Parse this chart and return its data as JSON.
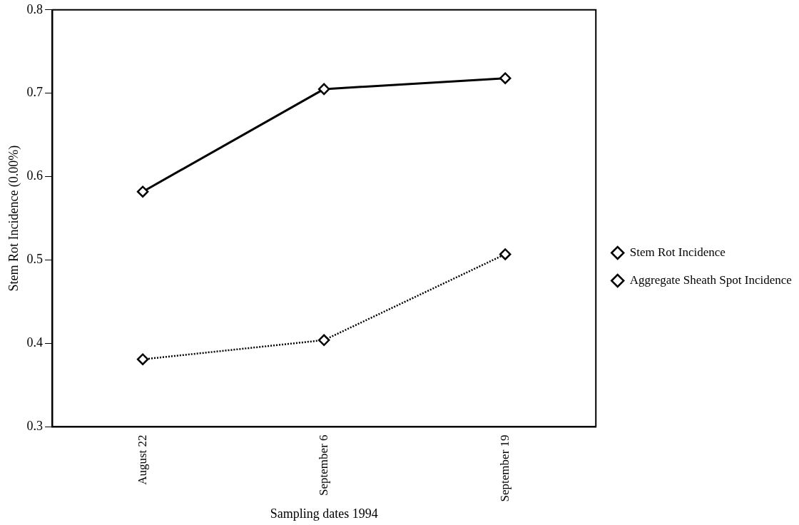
{
  "chart_data": {
    "type": "line",
    "xlabel": "Sampling dates 1994",
    "ylabel": "Stem Rot Incidence (0.00%)",
    "categories": [
      "August 22",
      "September 6",
      "September 19"
    ],
    "series": [
      {
        "name": "Stem Rot Incidence",
        "color": "#000000",
        "values": [
          0.582,
          0.705,
          0.718
        ],
        "line_style": "solid"
      },
      {
        "name": "Aggregate Sheath Spot Incidence",
        "color": "#000000",
        "values": [
          0.381,
          0.404,
          0.507
        ],
        "line_style": "dotted"
      }
    ],
    "ylim": [
      0.3,
      0.8
    ],
    "yticks": [
      0.3,
      0.4,
      0.5,
      0.6,
      0.7,
      0.8
    ],
    "grid": false,
    "legend": "right",
    "marker": "diamond"
  }
}
